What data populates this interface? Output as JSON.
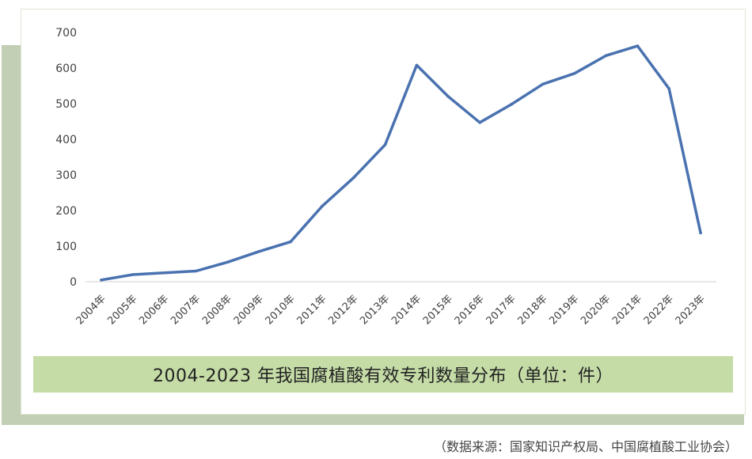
{
  "chart_data": {
    "type": "line",
    "title": "2004-2023 年我国腐植酸有效专利数量分布（单位：件）",
    "categories": [
      "2004年",
      "2005年",
      "2006年",
      "2007年",
      "2008年",
      "2009年",
      "2010年",
      "2011年",
      "2012年",
      "2013年",
      "2014年",
      "2015年",
      "2016年",
      "2017年",
      "2018年",
      "2019年",
      "2020年",
      "2021年",
      "2022年",
      "2023年"
    ],
    "series": [
      {
        "values": [
          5,
          20,
          25,
          30,
          55,
          85,
          112,
          212,
          292,
          385,
          608,
          520,
          447,
          498,
          555,
          585,
          635,
          662,
          542,
          137
        ],
        "color": "#4a72b0"
      }
    ],
    "ylim": [
      0,
      700
    ],
    "yticks": [
      0,
      100,
      200,
      300,
      400,
      500,
      600,
      700
    ],
    "grid": false,
    "axis_color": "#d9d9d9"
  },
  "source_note": "（数据来源：国家知识产权局、中国腐植酸工业协会）"
}
